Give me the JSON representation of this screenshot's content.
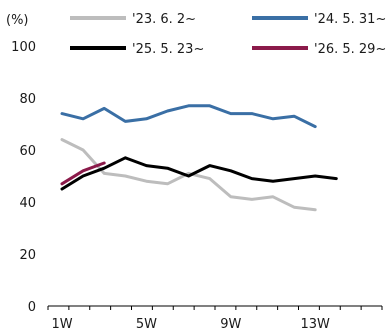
{
  "chart_data": {
    "type": "line",
    "unit_label": "(%)",
    "x": [
      "1W",
      "2W",
      "3W",
      "4W",
      "5W",
      "6W",
      "7W",
      "8W",
      "9W",
      "10W",
      "11W",
      "12W",
      "13W",
      "14W"
    ],
    "x_tick_labels": [
      "1W",
      "5W",
      "9W",
      "13W"
    ],
    "y_tick_labels": [
      "0",
      "20",
      "40",
      "60",
      "80",
      "100"
    ],
    "ylim": [
      0,
      100
    ],
    "xlim": [
      "1W",
      "16W"
    ],
    "grid": false,
    "legend_position": "top",
    "series": [
      {
        "name": "'23. 6. 2~",
        "color": "#bdbdbd",
        "values": [
          64,
          60,
          51,
          50,
          48,
          47,
          51,
          49,
          42,
          41,
          42,
          38,
          37,
          null
        ]
      },
      {
        "name": "'24. 5. 31~",
        "color": "#3a6fa5",
        "values": [
          74,
          72,
          76,
          71,
          72,
          75,
          77,
          77,
          74,
          74,
          72,
          73,
          69,
          null
        ]
      },
      {
        "name": "'25. 5. 23~",
        "color": "#000000",
        "values": [
          45,
          50,
          53,
          57,
          54,
          53,
          50,
          54,
          52,
          49,
          48,
          49,
          50,
          49
        ]
      },
      {
        "name": "'26. 5. 29~",
        "color": "#8b1a4a",
        "values": [
          47,
          52,
          55,
          null,
          null,
          null,
          null,
          null,
          null,
          null,
          null,
          null,
          null,
          null
        ]
      }
    ]
  }
}
